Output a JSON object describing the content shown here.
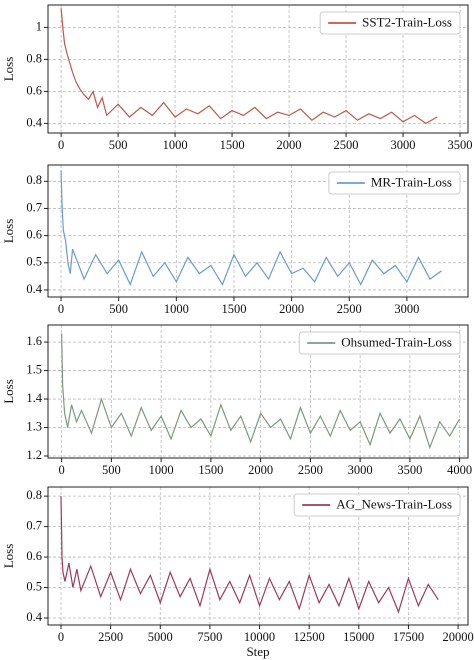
{
  "chart_data": [
    {
      "type": "line",
      "ylabel": "Loss",
      "grid": true,
      "legend": "upper right",
      "x": [
        0,
        15,
        30,
        50,
        75,
        100,
        130,
        160,
        200,
        240,
        280,
        320,
        360,
        400,
        500,
        600,
        700,
        800,
        900,
        1000,
        1100,
        1200,
        1300,
        1400,
        1500,
        1600,
        1700,
        1800,
        1900,
        2000,
        2100,
        2200,
        2300,
        2400,
        2500,
        2600,
        2700,
        2800,
        2900,
        3000,
        3100,
        3200,
        3300
      ],
      "series": [
        {
          "name": "SST2-Train-Loss",
          "color": "#c0574b",
          "values": [
            1.12,
            1.0,
            0.9,
            0.84,
            0.78,
            0.72,
            0.66,
            0.62,
            0.58,
            0.55,
            0.6,
            0.5,
            0.56,
            0.45,
            0.52,
            0.44,
            0.5,
            0.45,
            0.53,
            0.44,
            0.49,
            0.46,
            0.51,
            0.43,
            0.48,
            0.45,
            0.5,
            0.43,
            0.47,
            0.45,
            0.49,
            0.42,
            0.47,
            0.44,
            0.48,
            0.42,
            0.46,
            0.43,
            0.47,
            0.41,
            0.45,
            0.4,
            0.44
          ]
        }
      ],
      "xlim": [
        -115,
        3570
      ],
      "ylim": [
        0.34,
        1.14
      ],
      "xticks": [
        0,
        500,
        1000,
        1500,
        2000,
        2500,
        3000,
        3500
      ],
      "yticks": [
        0.4,
        0.6,
        0.8,
        1.0
      ]
    },
    {
      "type": "line",
      "ylabel": "Loss",
      "grid": true,
      "legend": "upper right",
      "x": [
        0,
        10,
        20,
        40,
        60,
        80,
        100,
        200,
        300,
        400,
        500,
        600,
        700,
        800,
        900,
        1000,
        1100,
        1200,
        1300,
        1400,
        1500,
        1600,
        1700,
        1800,
        1900,
        2000,
        2100,
        2200,
        2300,
        2400,
        2500,
        2600,
        2700,
        2800,
        2900,
        3000,
        3100,
        3200,
        3300
      ],
      "series": [
        {
          "name": "MR-Train-Loss",
          "color": "#6b9bd1",
          "values": [
            0.84,
            0.7,
            0.62,
            0.58,
            0.5,
            0.46,
            0.55,
            0.44,
            0.53,
            0.46,
            0.51,
            0.42,
            0.54,
            0.45,
            0.5,
            0.43,
            0.52,
            0.46,
            0.49,
            0.42,
            0.53,
            0.45,
            0.5,
            0.44,
            0.54,
            0.46,
            0.48,
            0.43,
            0.52,
            0.45,
            0.5,
            0.42,
            0.51,
            0.46,
            0.49,
            0.43,
            0.52,
            0.44,
            0.47
          ]
        }
      ],
      "xlim": [
        -113,
        3530
      ],
      "ylim": [
        0.374,
        0.86
      ],
      "xticks": [
        0,
        500,
        1000,
        1500,
        2000,
        2500,
        3000
      ],
      "yticks": [
        0.4,
        0.5,
        0.6,
        0.7,
        0.8
      ]
    },
    {
      "type": "line",
      "ylabel": "Loss",
      "grid": true,
      "legend": "upper right",
      "x": [
        0,
        10,
        30,
        60,
        100,
        150,
        200,
        300,
        400,
        500,
        600,
        700,
        800,
        900,
        1000,
        1100,
        1200,
        1300,
        1400,
        1500,
        1600,
        1700,
        1800,
        1900,
        2000,
        2100,
        2200,
        2300,
        2400,
        2500,
        2600,
        2700,
        2800,
        2900,
        3000,
        3100,
        3200,
        3300,
        3400,
        3500,
        3600,
        3700,
        3800,
        3900,
        4000
      ],
      "series": [
        {
          "name": "Ohsumed-Train-Loss",
          "color": "#7b9a7f",
          "values": [
            1.63,
            1.45,
            1.35,
            1.3,
            1.38,
            1.32,
            1.36,
            1.28,
            1.4,
            1.3,
            1.35,
            1.27,
            1.37,
            1.29,
            1.34,
            1.26,
            1.36,
            1.3,
            1.33,
            1.27,
            1.38,
            1.29,
            1.34,
            1.25,
            1.35,
            1.3,
            1.33,
            1.26,
            1.37,
            1.28,
            1.34,
            1.27,
            1.36,
            1.29,
            1.32,
            1.24,
            1.35,
            1.28,
            1.33,
            1.26,
            1.34,
            1.23,
            1.32,
            1.27,
            1.33
          ]
        }
      ],
      "xlim": [
        -137,
        4084
      ],
      "ylim": [
        1.193,
        1.66
      ],
      "xticks": [
        0,
        500,
        1000,
        1500,
        2000,
        2500,
        3000,
        3500,
        4000
      ],
      "yticks": [
        1.2,
        1.3,
        1.4,
        1.5,
        1.6
      ]
    },
    {
      "type": "line",
      "ylabel": "Loss",
      "xlabel": "Step",
      "grid": true,
      "legend": "upper right",
      "x": [
        0,
        50,
        100,
        200,
        400,
        600,
        800,
        1000,
        1500,
        2000,
        2500,
        3000,
        3500,
        4000,
        4500,
        5000,
        5500,
        6000,
        6500,
        7000,
        7500,
        8000,
        8500,
        9000,
        9500,
        10000,
        10500,
        11000,
        11500,
        12000,
        12500,
        13000,
        13500,
        14000,
        14500,
        15000,
        15500,
        16000,
        16500,
        17000,
        17500,
        18000,
        18500,
        19000
      ],
      "series": [
        {
          "name": "AG_News-Train-Loss",
          "color": "#a2385c",
          "values": [
            0.8,
            0.6,
            0.55,
            0.52,
            0.58,
            0.5,
            0.56,
            0.49,
            0.57,
            0.47,
            0.55,
            0.46,
            0.56,
            0.48,
            0.54,
            0.45,
            0.55,
            0.47,
            0.53,
            0.44,
            0.56,
            0.46,
            0.52,
            0.45,
            0.54,
            0.44,
            0.53,
            0.46,
            0.52,
            0.43,
            0.54,
            0.45,
            0.51,
            0.44,
            0.53,
            0.43,
            0.52,
            0.45,
            0.5,
            0.42,
            0.53,
            0.44,
            0.51,
            0.46
          ]
        }
      ],
      "xlim": [
        -655,
        20500
      ],
      "ylim": [
        0.377,
        0.83
      ],
      "xticks": [
        0,
        2500,
        5000,
        7500,
        10000,
        12500,
        15000,
        17500,
        20000
      ],
      "yticks": [
        0.4,
        0.5,
        0.6,
        0.7,
        0.8
      ]
    }
  ]
}
